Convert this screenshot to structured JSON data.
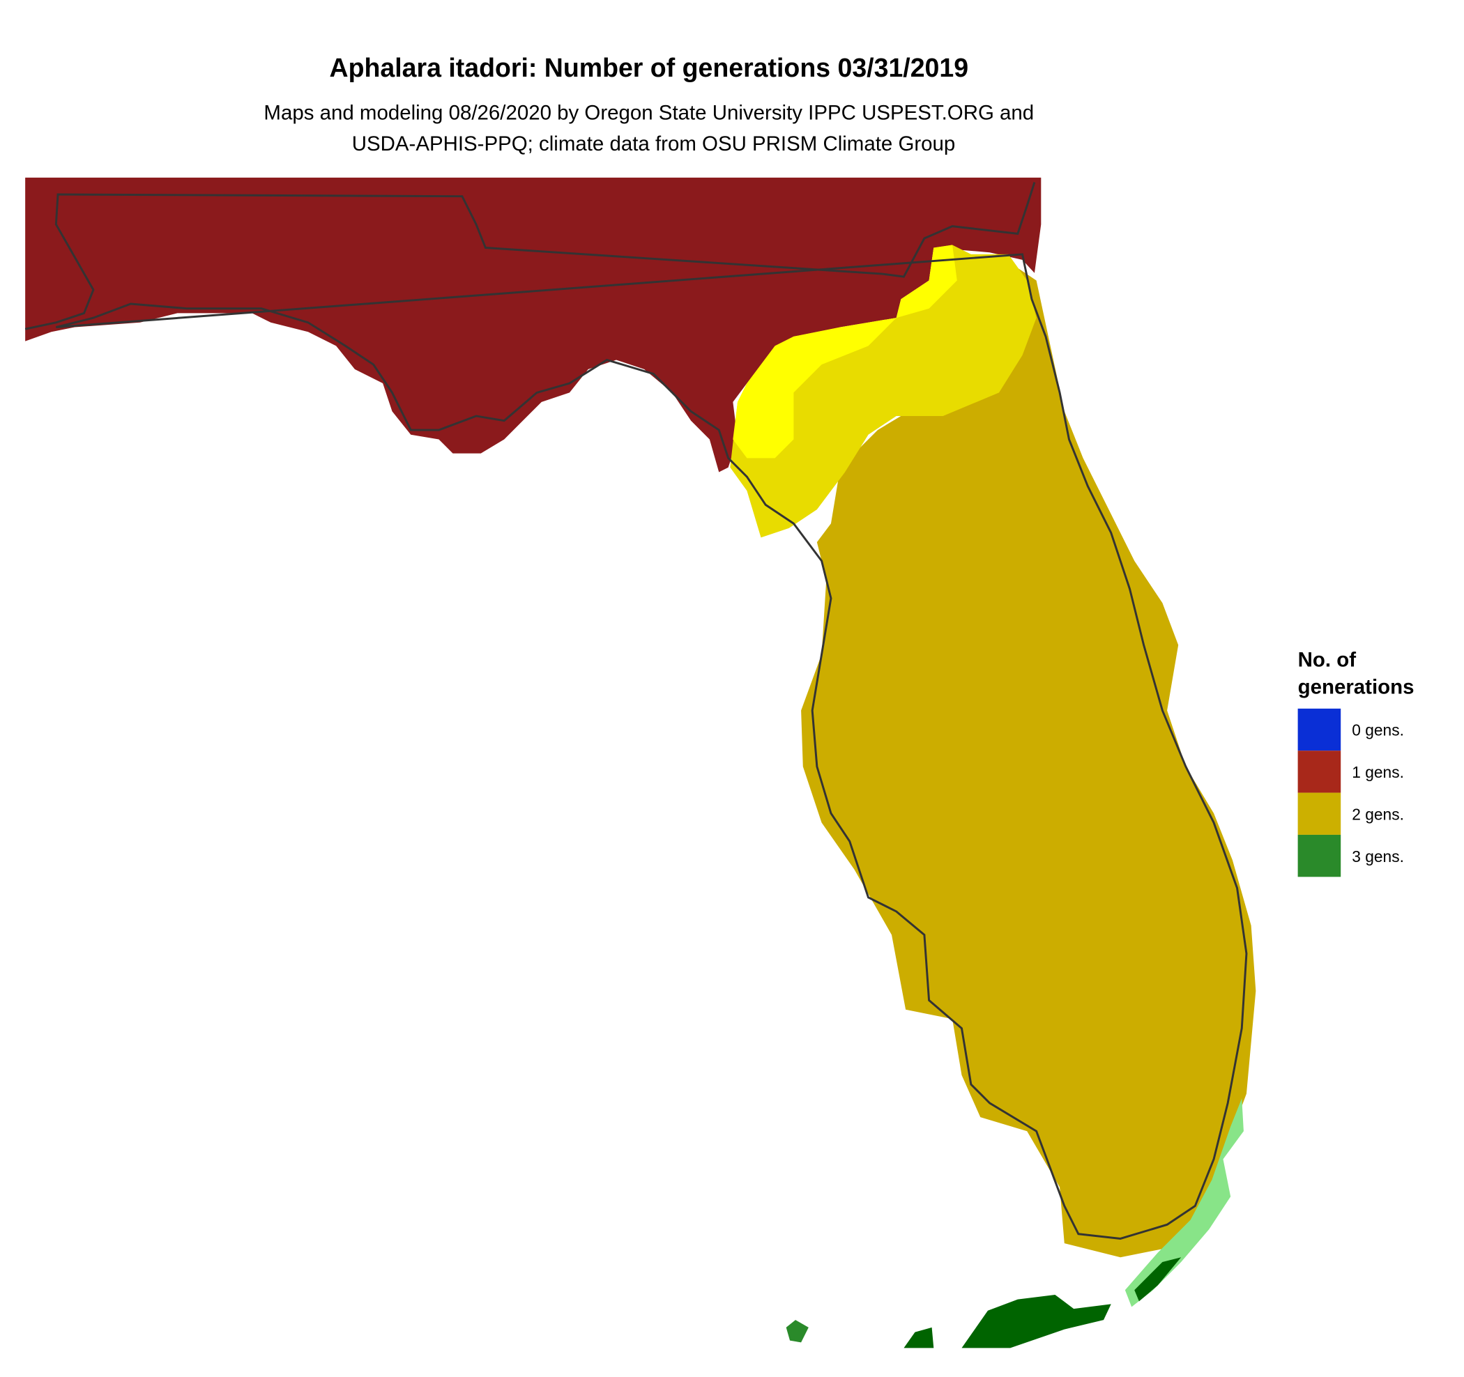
{
  "title": "Aphalara itadori: Number of generations 03/31/2019",
  "subtitle": [
    "Maps and modeling 08/26/2020 by Oregon State University IPPC USPEST.ORG and",
    "USDA-APHIS-PPQ; climate data from OSU PRISM Climate Group"
  ],
  "legend": {
    "title": [
      "No. of",
      "generations"
    ],
    "items": [
      {
        "label": "0 gens.",
        "color": "#0a2fd6"
      },
      {
        "label": "1 gens.",
        "color": "#a8281a"
      },
      {
        "label": "2 gens.",
        "color": "#ccb000"
      },
      {
        "label": "3 gens.",
        "color": "#2a8a2a"
      }
    ]
  }
}
